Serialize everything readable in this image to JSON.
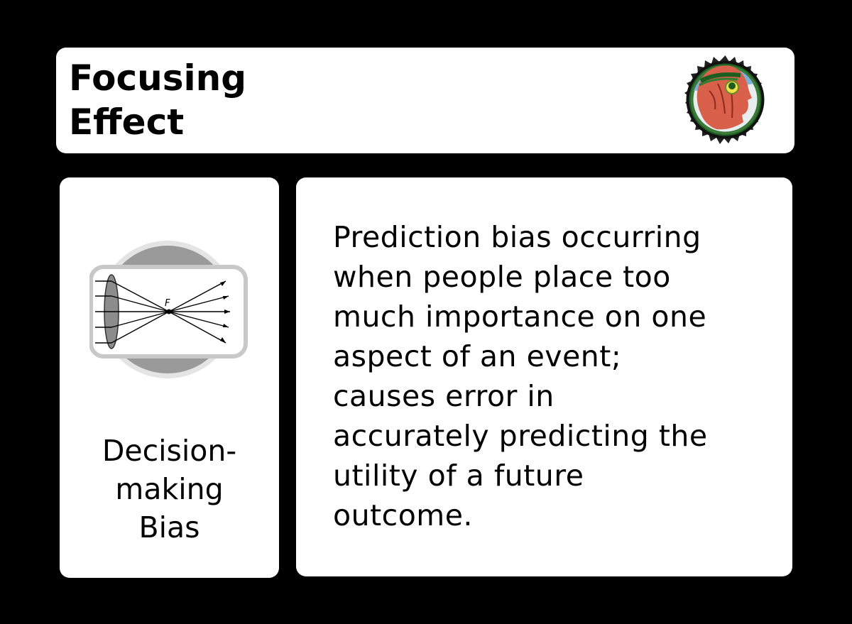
{
  "card": {
    "title": "Focusing\nEffect",
    "category": "Decision-\nmaking\nBias",
    "description": "Prediction bias occurring\nwhen people place too\nmuch importance on one\naspect of an event;\ncauses error in\naccurately predicting the\nutility of a future\noutcome.",
    "lens_label": "F"
  },
  "icons": {
    "seal": "head-profile-seal-icon",
    "category": "lens-focus-icon"
  },
  "colors": {
    "background": "#000000",
    "panel": "#ffffff",
    "text": "#000000",
    "seal_face": "#d9604a",
    "seal_leaves": "#2e7d32"
  }
}
